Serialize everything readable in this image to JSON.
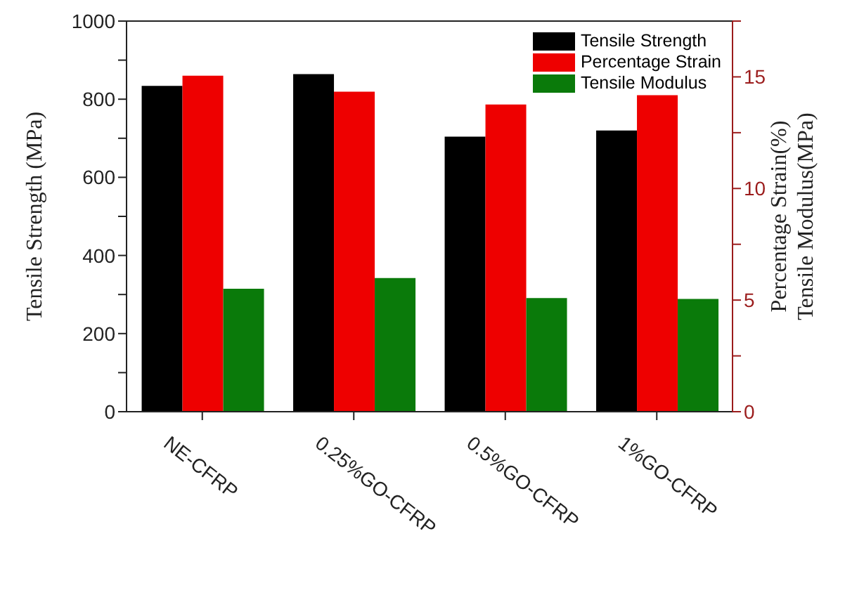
{
  "chart_data": {
    "type": "bar",
    "ylabel": "Tensile Strength (MPa)",
    "y2label": "Percentage Strain(%)\nTensile Modulus(MPa)",
    "categories": [
      "NE-CFRP",
      "0.25%GO-CFRP",
      "0.5%GO-CFRP",
      "1%GO-CFRP"
    ],
    "series": [
      {
        "name": "Tensile Strength",
        "color": "#000000",
        "values": [
          834,
          864,
          704,
          720
        ]
      },
      {
        "name": "Percentage Strain",
        "color": "#ee0000",
        "axis": "y2",
        "values": [
          15.05,
          14.34,
          13.76,
          14.18
        ]
      },
      {
        "name": "Tensile Modulus",
        "color": "#0a7a0a",
        "axis": "y2",
        "values": [
          5.51,
          5.99,
          5.09,
          5.05
        ]
      }
    ],
    "ylim": [
      0,
      1000
    ],
    "yticks": [
      0,
      {
        "value": 100,
        "label": null
      },
      200,
      {
        "value": 300,
        "label": null
      },
      400,
      {
        "value": 500,
        "label": null
      },
      600,
      {
        "value": 700,
        "label": null
      },
      800,
      {
        "value": 900,
        "label": null
      },
      1000
    ],
    "y2lim": [
      0,
      17.5
    ],
    "y2ticks": [
      0,
      {
        "value": 2.5,
        "label": null
      },
      5,
      {
        "value": 7.5,
        "label": null
      },
      10,
      {
        "value": 12.5,
        "label": null
      },
      15,
      {
        "value": 17.5,
        "label": null
      }
    ],
    "legend": "top right",
    "grid": false
  }
}
